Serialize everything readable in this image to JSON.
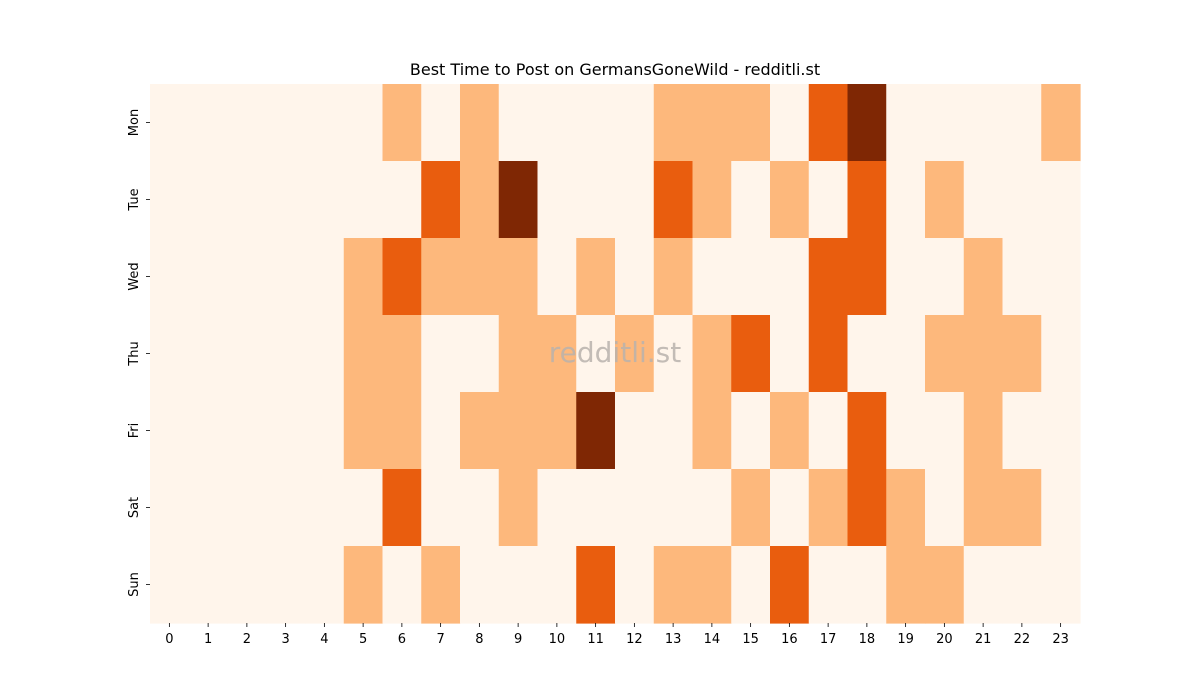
{
  "chart_data": {
    "type": "heatmap",
    "title": "Best Time to Post on GermansGoneWild - redditli.st",
    "watermark": "redditli.st",
    "x_categories": [
      "0",
      "1",
      "2",
      "3",
      "4",
      "5",
      "6",
      "7",
      "8",
      "9",
      "10",
      "11",
      "12",
      "13",
      "14",
      "15",
      "16",
      "17",
      "18",
      "19",
      "20",
      "21",
      "22",
      "23"
    ],
    "y_categories": [
      "Mon",
      "Tue",
      "Wed",
      "Thu",
      "Fri",
      "Sat",
      "Sun"
    ],
    "levels": [
      0,
      1,
      2,
      3
    ],
    "colors": [
      "#fff5eb",
      "#fdb87c",
      "#e95d0e",
      "#7f2704"
    ],
    "values": [
      [
        0,
        0,
        0,
        0,
        0,
        0,
        1,
        0,
        1,
        0,
        0,
        0,
        0,
        1,
        1,
        1,
        0,
        2,
        3,
        0,
        0,
        0,
        0,
        1
      ],
      [
        0,
        0,
        0,
        0,
        0,
        0,
        0,
        2,
        1,
        3,
        0,
        0,
        0,
        2,
        1,
        0,
        1,
        0,
        2,
        0,
        1,
        0,
        0,
        0
      ],
      [
        0,
        0,
        0,
        0,
        0,
        1,
        2,
        1,
        1,
        1,
        0,
        1,
        0,
        1,
        0,
        0,
        0,
        2,
        2,
        0,
        0,
        1,
        0,
        0
      ],
      [
        0,
        0,
        0,
        0,
        0,
        1,
        1,
        0,
        0,
        1,
        1,
        0,
        1,
        0,
        1,
        2,
        0,
        2,
        0,
        0,
        1,
        1,
        1,
        0
      ],
      [
        0,
        0,
        0,
        0,
        0,
        1,
        1,
        0,
        1,
        1,
        1,
        3,
        0,
        0,
        1,
        0,
        1,
        0,
        2,
        0,
        0,
        1,
        0,
        0
      ],
      [
        0,
        0,
        0,
        0,
        0,
        0,
        2,
        0,
        0,
        1,
        0,
        0,
        0,
        0,
        0,
        1,
        0,
        1,
        2,
        1,
        0,
        1,
        1,
        0
      ],
      [
        0,
        0,
        0,
        0,
        0,
        1,
        0,
        1,
        0,
        0,
        0,
        2,
        0,
        1,
        1,
        0,
        2,
        0,
        0,
        1,
        1,
        0,
        0,
        0
      ]
    ]
  }
}
